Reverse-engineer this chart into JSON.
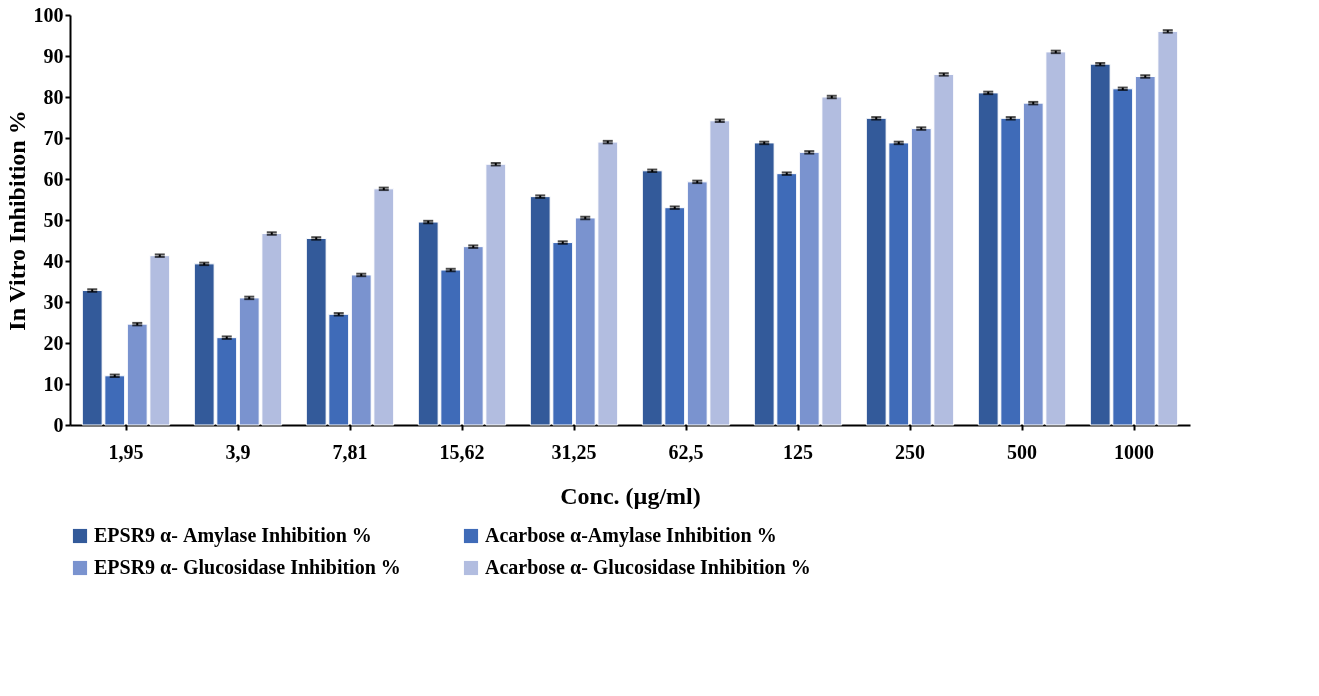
{
  "chart_data": {
    "type": "bar",
    "xlabel": "Conc. (µg/ml)",
    "ylabel": "In Vitro Inhibition %",
    "categories": [
      "1,95",
      "3,9",
      "7,81",
      "15,62",
      "31,25",
      "62,5",
      "125",
      "250",
      "500",
      "1000"
    ],
    "series": [
      {
        "name": "EPSR9 α- Amylase Inhibition %",
        "color": "#335a9a",
        "values": [
          32.8,
          39.3,
          45.5,
          49.5,
          55.7,
          62,
          68.8,
          74.8,
          81,
          88
        ],
        "errors": [
          0.3,
          0.3,
          0.3,
          0.3,
          0.3,
          0.3,
          0.3,
          0.3,
          0.3,
          0.3
        ]
      },
      {
        "name": "Acarbose α-Amylase Inhibition %",
        "color": "#3f6bb8",
        "values": [
          12,
          21.3,
          27,
          37.8,
          44.5,
          53,
          61.3,
          68.8,
          74.8,
          82
        ],
        "errors": [
          0.3,
          0.3,
          0.3,
          0.3,
          0.3,
          0.3,
          0.3,
          0.3,
          0.3,
          0.3
        ]
      },
      {
        "name": "EPSR9 α- Glucosidase Inhibition %",
        "color": "#7a93cf",
        "values": [
          24.6,
          31,
          36.6,
          43.5,
          50.5,
          59.3,
          66.5,
          72.3,
          78.5,
          85
        ],
        "errors": [
          0.3,
          0.3,
          0.3,
          0.3,
          0.3,
          0.3,
          0.3,
          0.3,
          0.3,
          0.3
        ]
      },
      {
        "name": "Acarbose α- Glucosidase Inhibition %",
        "color": "#b2bde0",
        "values": [
          41.3,
          46.7,
          57.6,
          63.6,
          69,
          74.2,
          80,
          85.5,
          91,
          96
        ],
        "errors": [
          0.3,
          0.3,
          0.3,
          0.3,
          0.3,
          0.3,
          0.3,
          0.3,
          0.3,
          0.3
        ]
      }
    ],
    "ylim": [
      0,
      100
    ],
    "yticks": [
      0,
      10,
      20,
      30,
      40,
      50,
      60,
      70,
      80,
      90,
      100
    ],
    "grid": false,
    "legend": "bottom"
  }
}
